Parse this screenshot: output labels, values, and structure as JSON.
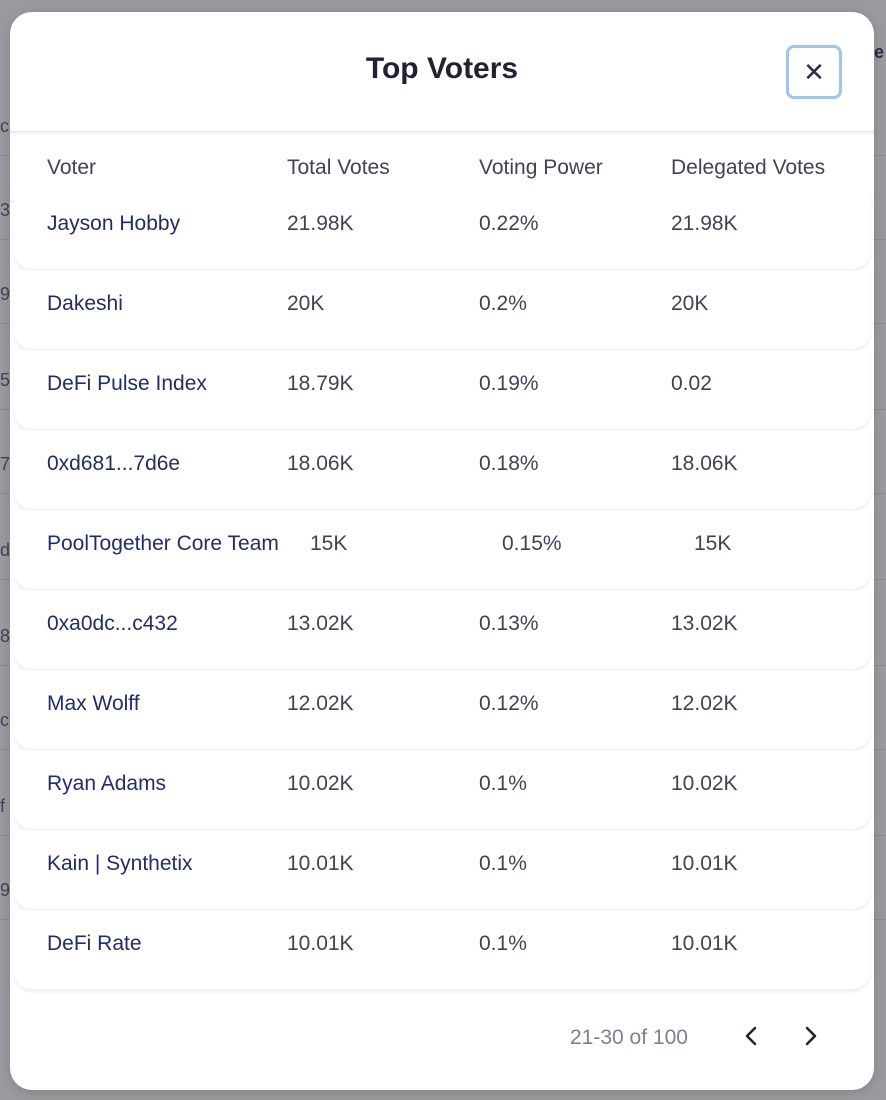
{
  "background": {
    "header_fragment": "e",
    "row_fragments": [
      "c",
      "3",
      "9",
      "5",
      "7",
      "d",
      "8",
      "c",
      "f",
      "9"
    ]
  },
  "modal": {
    "title": "Top Voters",
    "close_icon": "close-icon",
    "columns": [
      "Voter",
      "Total Votes",
      "Voting Power",
      "Delegated Votes"
    ],
    "rows": [
      {
        "voter": "Jayson Hobby",
        "total": "21.98K",
        "power": "0.22%",
        "delegated": "21.98K"
      },
      {
        "voter": "Dakeshi",
        "total": "20K",
        "power": "0.2%",
        "delegated": "20K"
      },
      {
        "voter": "DeFi Pulse Index",
        "total": "18.79K",
        "power": "0.19%",
        "delegated": "0.02"
      },
      {
        "voter": "0xd681...7d6e",
        "total": "18.06K",
        "power": "0.18%",
        "delegated": "18.06K"
      },
      {
        "voter": "PoolTogether Core Team",
        "total": "15K",
        "power": "0.15%",
        "delegated": "15K"
      },
      {
        "voter": "0xa0dc...c432",
        "total": "13.02K",
        "power": "0.13%",
        "delegated": "13.02K"
      },
      {
        "voter": "Max Wolff",
        "total": "12.02K",
        "power": "0.12%",
        "delegated": "12.02K"
      },
      {
        "voter": "Ryan Adams",
        "total": "10.02K",
        "power": "0.1%",
        "delegated": "10.02K"
      },
      {
        "voter": "Kain | Synthetix",
        "total": "10.01K",
        "power": "0.1%",
        "delegated": "10.01K"
      },
      {
        "voter": "DeFi Rate",
        "total": "10.01K",
        "power": "0.1%",
        "delegated": "10.01K"
      }
    ],
    "pagination": {
      "text": "21-30 of 100",
      "prev_icon": "chevron-left-icon",
      "next_icon": "chevron-right-icon"
    }
  }
}
